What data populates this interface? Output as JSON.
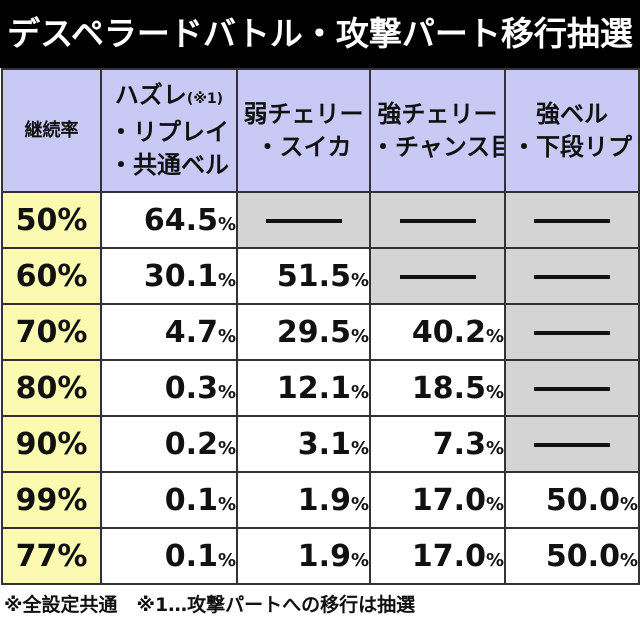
{
  "title": "デスペラードバトル・攻撃パート移行抽選",
  "table": {
    "corner_label": "継続率",
    "columns": [
      {
        "lines": [
          "ハズレ",
          "・リプレイ",
          "・共通ベル"
        ],
        "note": "(※1)"
      },
      {
        "lines": [
          "弱チェリー",
          "・スイカ"
        ]
      },
      {
        "lines": [
          "強チェリー",
          "・チャンス目"
        ]
      },
      {
        "lines": [
          "強ベル",
          "・下段リプ"
        ]
      }
    ],
    "rows": [
      {
        "rate": "50%",
        "cells": [
          "64.5",
          null,
          null,
          null
        ]
      },
      {
        "rate": "60%",
        "cells": [
          "30.1",
          "51.5",
          null,
          null
        ]
      },
      {
        "rate": "70%",
        "cells": [
          "4.7",
          "29.5",
          "40.2",
          null
        ]
      },
      {
        "rate": "80%",
        "cells": [
          "0.3",
          "12.1",
          "18.5",
          null
        ]
      },
      {
        "rate": "90%",
        "cells": [
          "0.2",
          "3.1",
          "7.3",
          null
        ]
      },
      {
        "rate": "99%",
        "cells": [
          "0.1",
          "1.9",
          "17.0",
          "50.0"
        ]
      },
      {
        "rate": "77%",
        "cells": [
          "0.1",
          "1.9",
          "17.0",
          "50.0"
        ]
      }
    ],
    "percent_sign": "%"
  },
  "footer": "※全設定共通　※1…攻撃パートへの移行は抽選",
  "colors": {
    "title_bg": "#000000",
    "header_bg": "#c9c9f5",
    "rate_bg": "#fbfab0",
    "empty_bg": "#d4d4d4"
  }
}
